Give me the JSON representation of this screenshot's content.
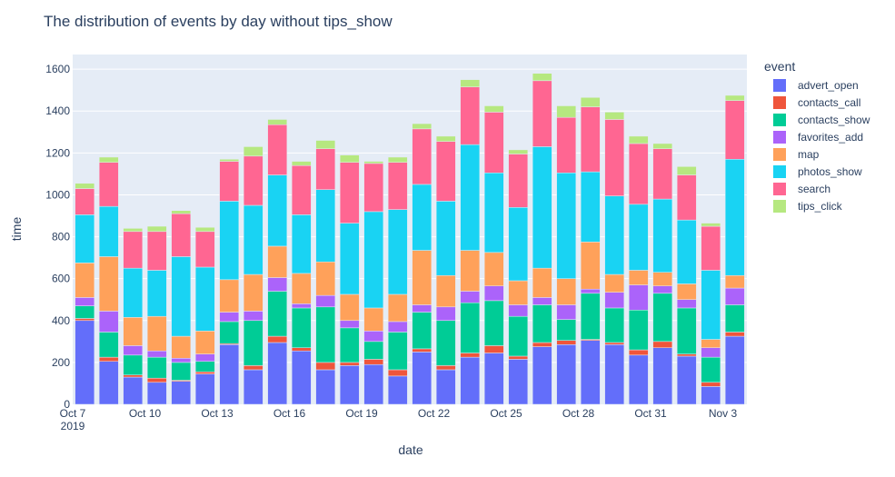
{
  "chart_data": {
    "type": "bar",
    "stacked": true,
    "title": "The distribution of events by day without tips_show",
    "xlabel": "date",
    "ylabel": "time",
    "ylim": [
      0,
      1670
    ],
    "yticks": [
      0,
      200,
      400,
      600,
      800,
      1000,
      1200,
      1400,
      1600
    ],
    "grid": true,
    "legend_title": "event",
    "legend_position": "right",
    "x": [
      "2019-10-07",
      "2019-10-08",
      "2019-10-09",
      "2019-10-10",
      "2019-10-11",
      "2019-10-12",
      "2019-10-13",
      "2019-10-14",
      "2019-10-15",
      "2019-10-16",
      "2019-10-17",
      "2019-10-18",
      "2019-10-19",
      "2019-10-20",
      "2019-10-21",
      "2019-10-22",
      "2019-10-23",
      "2019-10-24",
      "2019-10-25",
      "2019-10-26",
      "2019-10-27",
      "2019-10-28",
      "2019-10-29",
      "2019-10-30",
      "2019-10-31",
      "2019-11-01",
      "2019-11-02",
      "2019-11-03"
    ],
    "xticks": [
      {
        "date": "2019-10-07",
        "label": "Oct 7",
        "sublabel": "2019"
      },
      {
        "date": "2019-10-10",
        "label": "Oct 10"
      },
      {
        "date": "2019-10-13",
        "label": "Oct 13"
      },
      {
        "date": "2019-10-16",
        "label": "Oct 16"
      },
      {
        "date": "2019-10-19",
        "label": "Oct 19"
      },
      {
        "date": "2019-10-22",
        "label": "Oct 22"
      },
      {
        "date": "2019-10-25",
        "label": "Oct 25"
      },
      {
        "date": "2019-10-28",
        "label": "Oct 28"
      },
      {
        "date": "2019-10-31",
        "label": "Oct 31"
      },
      {
        "date": "2019-11-03",
        "label": "Nov 3"
      }
    ],
    "series": [
      {
        "name": "advert_open",
        "color": "#636efa",
        "values": [
          400,
          205,
          130,
          105,
          110,
          145,
          285,
          165,
          295,
          255,
          165,
          185,
          190,
          135,
          250,
          165,
          225,
          245,
          215,
          275,
          285,
          305,
          285,
          235,
          270,
          230,
          85,
          325
        ]
      },
      {
        "name": "contacts_call",
        "color": "#ef553b",
        "values": [
          10,
          20,
          10,
          20,
          5,
          10,
          5,
          20,
          30,
          15,
          35,
          15,
          25,
          30,
          15,
          20,
          20,
          35,
          15,
          20,
          20,
          5,
          10,
          25,
          30,
          10,
          20,
          20
        ]
      },
      {
        "name": "contacts_show",
        "color": "#00cc96",
        "values": [
          60,
          120,
          95,
          100,
          85,
          50,
          105,
          215,
          215,
          190,
          265,
          165,
          85,
          180,
          175,
          215,
          240,
          215,
          190,
          180,
          100,
          220,
          165,
          190,
          230,
          220,
          120,
          130
        ]
      },
      {
        "name": "favorites_add",
        "color": "#ab63fa",
        "values": [
          40,
          100,
          45,
          30,
          20,
          35,
          45,
          45,
          65,
          20,
          55,
          35,
          50,
          50,
          35,
          65,
          55,
          70,
          55,
          35,
          70,
          20,
          75,
          120,
          35,
          40,
          45,
          80
        ]
      },
      {
        "name": "map",
        "color": "#ffa15a",
        "values": [
          165,
          260,
          135,
          165,
          105,
          110,
          155,
          175,
          150,
          145,
          160,
          125,
          110,
          130,
          260,
          150,
          195,
          160,
          115,
          140,
          125,
          225,
          85,
          70,
          65,
          75,
          40,
          60
        ]
      },
      {
        "name": "photos_show",
        "color": "#19d3f3",
        "values": [
          230,
          240,
          235,
          220,
          380,
          305,
          375,
          330,
          340,
          280,
          345,
          340,
          460,
          405,
          315,
          355,
          505,
          380,
          350,
          580,
          505,
          335,
          375,
          315,
          350,
          305,
          330,
          555
        ]
      },
      {
        "name": "search",
        "color": "#ff6692",
        "values": [
          125,
          210,
          175,
          185,
          205,
          170,
          190,
          235,
          240,
          235,
          195,
          290,
          230,
          225,
          265,
          285,
          275,
          290,
          255,
          315,
          265,
          310,
          365,
          290,
          240,
          215,
          210,
          280
        ]
      },
      {
        "name": "tips_click",
        "color": "#b6e880",
        "values": [
          25,
          25,
          15,
          25,
          15,
          20,
          10,
          45,
          25,
          20,
          40,
          35,
          10,
          25,
          25,
          25,
          35,
          30,
          20,
          35,
          55,
          45,
          35,
          35,
          25,
          40,
          15,
          25
        ]
      }
    ]
  }
}
